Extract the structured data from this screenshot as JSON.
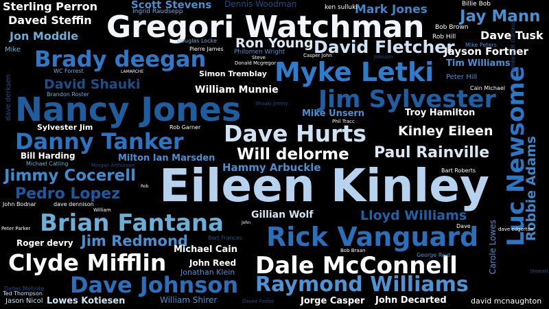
{
  "words": [
    {
      "text": "Eileen Kinley",
      "color": "#b5d3ee"
    },
    {
      "text": "Gregori Watchman",
      "color": "#f2f6fb"
    },
    {
      "text": "Nancy Jones",
      "color": "#1f5e9e"
    },
    {
      "text": "Luc Newsome",
      "color": "#2b77c6"
    },
    {
      "text": "Myke Letki",
      "color": "#2e7ccc"
    },
    {
      "text": "Dale McConnell",
      "color": "#ffffff"
    },
    {
      "text": "Rick Vanguard",
      "color": "#2a6fba"
    },
    {
      "text": "Clyde Mifflin",
      "color": "#ffffff"
    },
    {
      "text": "Dave Hurts",
      "color": "#cfe3f5"
    },
    {
      "text": "Dave Johnson",
      "color": "#2a6fba"
    },
    {
      "text": "Brian Fantana",
      "color": "#6baed6"
    },
    {
      "text": "Raymond Williams",
      "color": "#4d94d4"
    },
    {
      "text": "Jim Sylvester",
      "color": "#1e5fa3"
    },
    {
      "text": "Danny Tanker",
      "color": "#2b74c2"
    },
    {
      "text": "Brady deegan",
      "color": "#2e78c8"
    },
    {
      "text": "David Fletcher",
      "color": "#cfe3f5"
    },
    {
      "text": "Jimmy Cocerell",
      "color": "#3f8cd0"
    },
    {
      "text": "Pedro Lopez",
      "color": "#1c5aa0"
    },
    {
      "text": "Will delorme",
      "color": "#ffffff"
    },
    {
      "text": "Paul Rainville",
      "color": "#dbe9f6"
    },
    {
      "text": "Kinley Eileen",
      "color": "#ffffff"
    },
    {
      "text": "Jim Redmond",
      "color": "#4a90d0"
    },
    {
      "text": "Jay Mann",
      "color": "#4a90d0"
    },
    {
      "text": "Mark Jones",
      "color": "#3f86c8"
    },
    {
      "text": "Robbie Adams",
      "color": "#3f86c8"
    },
    {
      "text": "Lloyd Williams",
      "color": "#1f62a8"
    },
    {
      "text": "Dave Tusk",
      "color": "#ffffff"
    },
    {
      "text": "David Shauki",
      "color": "#1c4f8a"
    },
    {
      "text": "Daved Steffin",
      "color": "#ffffff"
    },
    {
      "text": "Sterling Perron",
      "color": "#ffffff"
    },
    {
      "text": "Jon Moddle",
      "color": "#6baed6"
    },
    {
      "text": "Ron Young",
      "color": "#dbe9f6"
    },
    {
      "text": "Jayson Fortner",
      "color": "#ffffff"
    },
    {
      "text": "Tim Williams",
      "color": "#4a90d0"
    },
    {
      "text": "Scott Stevens",
      "color": "#4a90d0"
    },
    {
      "text": "Hammy Arbuckle",
      "color": "#4a90d0"
    },
    {
      "text": "Gillian Wolf",
      "color": "#cfe3f5"
    },
    {
      "text": "Jorge Casper",
      "color": "#ffffff"
    },
    {
      "text": "John Decarted",
      "color": "#ffffff"
    },
    {
      "text": "Lowes Kotiesen",
      "color": "#cfe3f5"
    },
    {
      "text": "Milton Ian Marsden",
      "color": "#4a90d0"
    },
    {
      "text": "William Munnie",
      "color": "#ffffff"
    },
    {
      "text": "Mike Unsern",
      "color": "#4a90d0"
    },
    {
      "text": "Troy Hamilton",
      "color": "#ffffff"
    },
    {
      "text": "Michael Cain",
      "color": "#ffffff"
    },
    {
      "text": "John Reed",
      "color": "#ffffff"
    },
    {
      "text": "Bill Harding",
      "color": "#ffffff"
    },
    {
      "text": "Roger devry",
      "color": "#ffffff"
    },
    {
      "text": "Sylvester Jim",
      "color": "#ffffff"
    },
    {
      "text": "Simon Tremblay",
      "color": "#ffffff"
    },
    {
      "text": "William Shirer",
      "color": "#4a90d0"
    },
    {
      "text": "david mcnaughton",
      "color": "#ffffff"
    },
    {
      "text": "Carole Lowes",
      "color": "#4a90d0"
    },
    {
      "text": "Dennis Woodman",
      "color": "#1c4f8a"
    },
    {
      "text": "Jonathan Klein",
      "color": "#4a90d0"
    },
    {
      "text": "Jason Nicol",
      "color": "#cfe3f5"
    },
    {
      "text": "Ingrid Raudsepp",
      "color": "#6baed6"
    },
    {
      "text": "ken sulluki",
      "color": "#ffffff"
    },
    {
      "text": "Billie Bob",
      "color": "#ffffff"
    },
    {
      "text": "Bob Brown",
      "color": "#ffffff"
    },
    {
      "text": "Rob Hill",
      "color": "#ffffff"
    },
    {
      "text": "Mike Peters",
      "color": "#4a90d0"
    },
    {
      "text": "Peter Hill",
      "color": "#4a90d0"
    },
    {
      "text": "Cain Michael",
      "color": "#ffffff"
    },
    {
      "text": "Rembrandt Garland",
      "color": "#1c4f8a"
    },
    {
      "text": "Mike",
      "color": "#6baed6"
    },
    {
      "text": "Douglas Locke",
      "color": "#6baed6"
    },
    {
      "text": "Pierre James",
      "color": "#ffffff"
    },
    {
      "text": "Philomen Wright",
      "color": "#4a90d0"
    },
    {
      "text": "Casper John",
      "color": "#ffffff"
    },
    {
      "text": "Johnson",
      "color": "#1c4f8a"
    },
    {
      "text": "Steve",
      "color": "#ffffff"
    },
    {
      "text": "Donald Mcgregor",
      "color": "#ffffff"
    },
    {
      "text": "WC Forrest",
      "color": "#6baed6"
    },
    {
      "text": "LAMARCHE",
      "color": "#ffffff"
    },
    {
      "text": "Brandon Roster",
      "color": "#6baed6"
    },
    {
      "text": "dave derksen",
      "color": "#1c4f8a"
    },
    {
      "text": "Shauki Jimmy",
      "color": "#1c4f8a"
    },
    {
      "text": "Phil Tracc",
      "color": "#ffffff"
    },
    {
      "text": "Rob Garner",
      "color": "#ffffff"
    },
    {
      "text": "Michael Catling",
      "color": "#6baed6"
    },
    {
      "text": "Morgan Arthurson",
      "color": "#1c4f8a"
    },
    {
      "text": "Bart Roberts",
      "color": "#ffffff"
    },
    {
      "text": "Rob",
      "color": "#ffffff"
    },
    {
      "text": "John Bodnar",
      "color": "#ffffff"
    },
    {
      "text": "dave dennison",
      "color": "#ffffff"
    },
    {
      "text": "William",
      "color": "#ffffff"
    },
    {
      "text": "Peter Parker",
      "color": "#ffffff"
    },
    {
      "text": "Bert Frances",
      "color": "#1c4f8a"
    },
    {
      "text": "John",
      "color": "#ffffff"
    },
    {
      "text": "Dave",
      "color": "#ffffff"
    },
    {
      "text": "dave edgerton",
      "color": "#ffffff"
    },
    {
      "text": "Bob Braan",
      "color": "#ffffff"
    },
    {
      "text": "George Reid",
      "color": "#4a90d0"
    },
    {
      "text": "Dallas Mehnke",
      "color": "#1c4f8a"
    },
    {
      "text": "Ted Thompson",
      "color": "#cfe3f5"
    },
    {
      "text": "Davee Foster",
      "color": "#1c4f8a"
    },
    {
      "text": "Stewart",
      "color": "#1c4f8a"
    }
  ]
}
